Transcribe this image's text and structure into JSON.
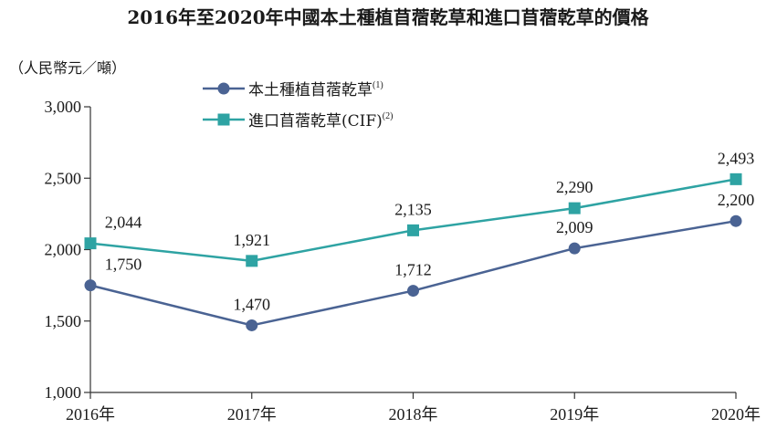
{
  "chart_data": {
    "type": "line",
    "title": "2016年至2020年中國本土種植苜蓿乾草和進口苜蓿乾草的價格",
    "ylabel": "（人民幣元／噸）",
    "xlabel": "",
    "categories": [
      "2016年",
      "2017年",
      "2018年",
      "2019年",
      "2020年"
    ],
    "ylim": [
      1000,
      3000
    ],
    "yticks": [
      1000,
      1500,
      2000,
      2500,
      3000
    ],
    "ytick_labels": [
      "1,000",
      "1,500",
      "2,000",
      "2,500",
      "3,000"
    ],
    "grid": false,
    "legend_position": "top-center",
    "series": [
      {
        "name": "本土種植苜蓿乾草",
        "name_sup": "(1)",
        "marker": "circle",
        "color": "#4a6393",
        "values": [
          1750,
          1470,
          1712,
          2009,
          2200
        ],
        "labels": [
          "1,750",
          "1,470",
          "1,712",
          "2,009",
          "2,200"
        ]
      },
      {
        "name": "進口苜蓿乾草(CIF)",
        "name_sup": "(2)",
        "marker": "square",
        "color": "#2ea3a3",
        "values": [
          2044,
          1921,
          2135,
          2290,
          2493
        ],
        "labels": [
          "2,044",
          "1,921",
          "2,135",
          "2,290",
          "2,493"
        ]
      }
    ]
  }
}
